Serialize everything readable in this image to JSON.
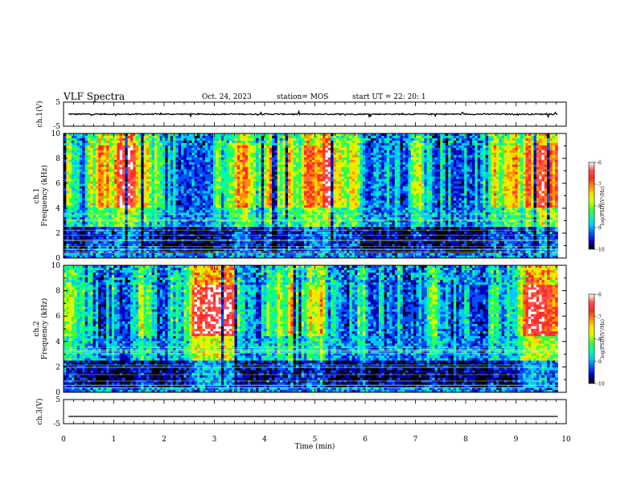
{
  "header": {
    "title": "VLF Spectra",
    "date": "Oct. 24, 2023",
    "station": "station= MOS",
    "start_ut": "start  UT  =   22: 20: 1"
  },
  "colorbar": {
    "label": "log(PSD)(V²/Hz)",
    "ticks": [
      "-6",
      "-7",
      "-8",
      "-9",
      "-10"
    ],
    "colors": [
      "#000000",
      "#0000b4",
      "#0050ff",
      "#00c8ff",
      "#00ff9a",
      "#3cff3c",
      "#d2ff00",
      "#ffdc00",
      "#ff8c00",
      "#ff2a2a",
      "#ff5050",
      "#ffffff"
    ]
  },
  "chart_data": [
    {
      "type": "line",
      "title": "",
      "ylabel": "ch.1(V)",
      "xlim": [
        0,
        10
      ],
      "ylim": [
        -5,
        5
      ],
      "yticks": [
        "5",
        "-5"
      ],
      "description_values": {
        "baseline_level": 0
      }
    },
    {
      "type": "heatmap",
      "title": "",
      "ylabel": "ch.1\nFrequency (kHz)",
      "ylabel_parts": [
        "ch.1",
        "Frequency (kHz)"
      ],
      "xlim": [
        0,
        9.83
      ],
      "ylim": [
        0,
        10
      ],
      "yticks": [
        "0",
        "2",
        "4",
        "6",
        "8",
        "10"
      ],
      "zlabel": "log(PSD)(V²/Hz)",
      "zlim": [
        -10,
        -6
      ],
      "band_kHz": [
        4,
        9
      ],
      "band_level": -7
    },
    {
      "type": "heatmap",
      "title": "",
      "ylabel_parts": [
        "ch.2",
        "Frequency (kHz)"
      ],
      "xlim": [
        0,
        9.83
      ],
      "ylim": [
        0,
        10
      ],
      "yticks": [
        "0",
        "2",
        "4",
        "6",
        "8",
        "10"
      ],
      "zlabel": "log(PSD)(V²/Hz)",
      "zlim": [
        -10,
        -6
      ],
      "band_kHz": [
        4.5,
        8.5
      ],
      "band_level": -7
    },
    {
      "type": "line",
      "title": "",
      "ylabel": "ch.3(V)",
      "xlim": [
        0,
        10
      ],
      "ylim": [
        -5,
        5
      ],
      "yticks": [
        "5",
        "-5"
      ],
      "xlabel": "Time (min)",
      "xticks": [
        "0",
        "1",
        "2",
        "3",
        "4",
        "5",
        "6",
        "7",
        "8",
        "9",
        "10"
      ],
      "description_values": {
        "baseline_level": -2
      }
    }
  ]
}
